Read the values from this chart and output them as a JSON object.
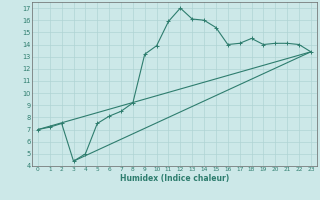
{
  "title": "",
  "xlabel": "Humidex (Indice chaleur)",
  "bg_color": "#cce8e8",
  "grid_color": "#b0d4d4",
  "line_color": "#2e7d6e",
  "xlim": [
    -0.5,
    23.5
  ],
  "ylim": [
    4,
    17.5
  ],
  "xticks": [
    0,
    1,
    2,
    3,
    4,
    5,
    6,
    7,
    8,
    9,
    10,
    11,
    12,
    13,
    14,
    15,
    16,
    17,
    18,
    19,
    20,
    21,
    22,
    23
  ],
  "yticks": [
    4,
    5,
    6,
    7,
    8,
    9,
    10,
    11,
    12,
    13,
    14,
    15,
    16,
    17
  ],
  "line1_x": [
    0,
    1,
    2,
    3,
    4,
    5,
    6,
    7,
    8,
    9,
    10,
    11,
    12,
    13,
    14,
    15,
    16,
    17,
    18,
    19,
    20,
    21,
    22,
    23
  ],
  "line1_y": [
    7.0,
    7.2,
    7.5,
    4.4,
    5.0,
    7.5,
    8.1,
    8.5,
    9.2,
    13.2,
    13.9,
    15.9,
    17.0,
    16.1,
    16.0,
    15.4,
    14.0,
    14.1,
    14.5,
    14.0,
    14.1,
    14.1,
    14.0,
    13.4
  ],
  "line2_x": [
    0,
    23
  ],
  "line2_y": [
    7.0,
    13.4
  ],
  "line3_x": [
    3,
    23
  ],
  "line3_y": [
    4.4,
    13.4
  ]
}
